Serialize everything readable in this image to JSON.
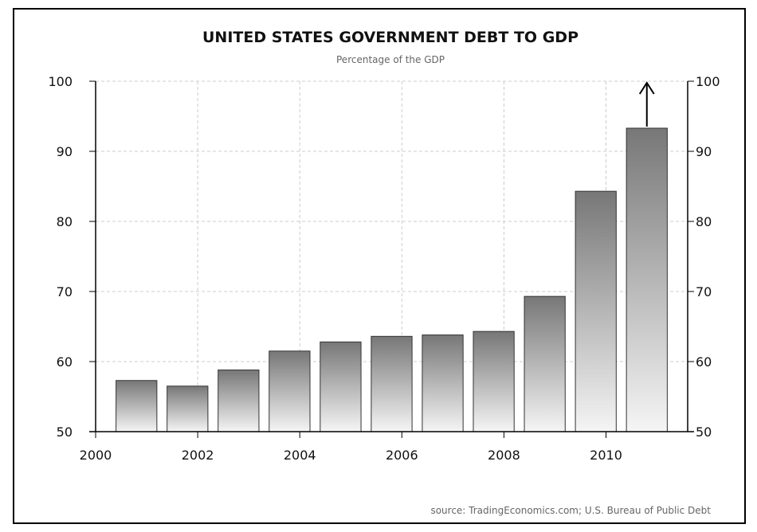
{
  "chart_data": {
    "type": "bar",
    "title": "UNITED STATES GOVERNMENT DEBT TO GDP",
    "subtitle": "Percentage of the GDP",
    "source": "source: TradingEconomics.com; U.S. Bureau of Public Debt",
    "categories": [
      "2001",
      "2002",
      "2003",
      "2004",
      "2005",
      "2006",
      "2007",
      "2008",
      "2009",
      "2010",
      "2011"
    ],
    "values": [
      57.3,
      56.5,
      58.8,
      61.5,
      62.8,
      63.6,
      63.8,
      64.3,
      69.3,
      84.3,
      93.3
    ],
    "xlim": [
      2000,
      2011.6
    ],
    "ylim": [
      50,
      100
    ],
    "x_ticks": [
      "2000",
      "2002",
      "2004",
      "2006",
      "2008",
      "2010"
    ],
    "y_ticks": [
      "50",
      "60",
      "70",
      "80",
      "90",
      "100"
    ],
    "y_axis_sides": [
      "left",
      "right"
    ],
    "grid": true,
    "annotations": [
      {
        "type": "arrow",
        "direction": "up",
        "x": 2010.8,
        "from_y": 93.3,
        "to_y": 100
      }
    ],
    "colors": {
      "bar_top": "#777777",
      "bar_bottom": "#f5f5f5",
      "bar_edge": "#333333",
      "grid": "#cccccc",
      "axis": "#000000"
    }
  }
}
